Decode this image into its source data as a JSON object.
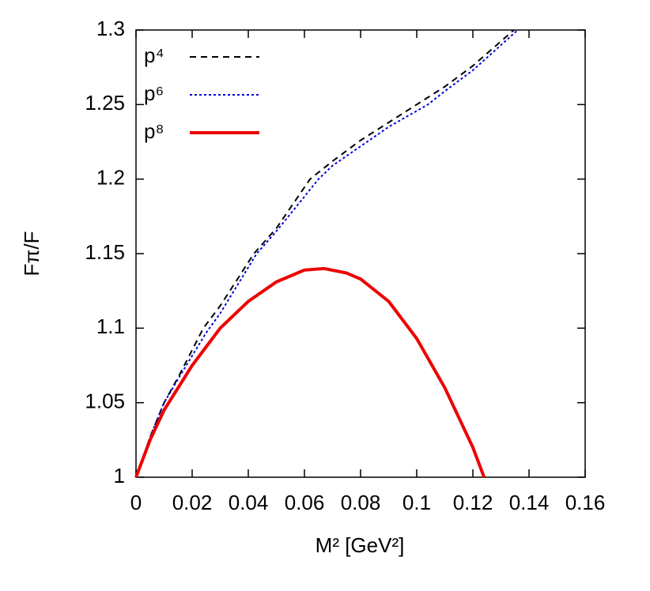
{
  "chart_data": {
    "type": "line",
    "x_label": "M² [GeV²]",
    "y_label": "Fπ/F",
    "xlim": [
      0,
      0.16
    ],
    "ylim": [
      1,
      1.3
    ],
    "xticks": [
      0,
      0.02,
      0.04,
      0.06,
      0.08,
      0.1,
      0.12,
      0.14,
      0.16
    ],
    "yticks": [
      1,
      1.05,
      1.1,
      1.15,
      1.2,
      1.25,
      1.3
    ],
    "legend": "top-left",
    "series": [
      {
        "name": "p⁴",
        "color": "#000000",
        "dash": "dashed",
        "width": 2,
        "x": [
          0,
          0.005,
          0.01,
          0.015,
          0.024,
          0.03,
          0.042,
          0.05,
          0.062,
          0.07,
          0.08,
          0.09,
          0.1,
          0.11,
          0.12,
          0.1346
        ],
        "values": [
          1,
          1.027,
          1.05,
          1.067,
          1.1,
          1.115,
          1.15,
          1.167,
          1.2,
          1.212,
          1.226,
          1.238,
          1.25,
          1.262,
          1.276,
          1.3
        ]
      },
      {
        "name": "p⁶",
        "color": "#0000dd",
        "dash": "dotted",
        "width": 2,
        "x": [
          0,
          0.005,
          0.01,
          0.015,
          0.025,
          0.03,
          0.043,
          0.05,
          0.065,
          0.07,
          0.08,
          0.09,
          0.104,
          0.11,
          0.12,
          0.136
        ],
        "values": [
          1,
          1.027,
          1.05,
          1.066,
          1.097,
          1.11,
          1.15,
          1.165,
          1.2,
          1.209,
          1.222,
          1.235,
          1.25,
          1.259,
          1.273,
          1.3
        ]
      },
      {
        "name": "p⁸",
        "color": "#ee0000",
        "dash": "solid",
        "width": 4,
        "x": [
          0,
          0.005,
          0.01,
          0.02,
          0.03,
          0.04,
          0.05,
          0.06,
          0.067,
          0.075,
          0.08,
          0.09,
          0.1,
          0.11,
          0.12,
          0.124
        ],
        "values": [
          1,
          1.025,
          1.045,
          1.075,
          1.1,
          1.118,
          1.131,
          1.139,
          1.14,
          1.137,
          1.133,
          1.118,
          1.093,
          1.06,
          1.02,
          1
        ]
      }
    ]
  }
}
